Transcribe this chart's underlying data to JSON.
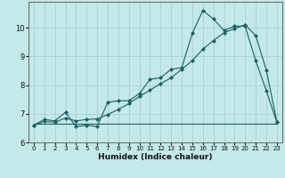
{
  "title": "",
  "xlabel": "Humidex (Indice chaleur)",
  "ylabel": "",
  "bg_color": "#c5e8e8",
  "grid_color": "#a8d0d0",
  "line_color": "#1a6060",
  "xlim": [
    -0.5,
    23.5
  ],
  "ylim": [
    6,
    10.9
  ],
  "xticks": [
    0,
    1,
    2,
    3,
    4,
    5,
    6,
    7,
    8,
    9,
    10,
    11,
    12,
    13,
    14,
    15,
    16,
    17,
    18,
    19,
    20,
    21,
    22,
    23
  ],
  "yticks": [
    6,
    7,
    8,
    9,
    10
  ],
  "line1_x": [
    0,
    1,
    2,
    3,
    4,
    5,
    6,
    7,
    8,
    9,
    10,
    11,
    12,
    13,
    14,
    15,
    16,
    17,
    18,
    19,
    20,
    21,
    22,
    23
  ],
  "line1_y": [
    6.6,
    6.8,
    6.75,
    7.05,
    6.55,
    6.6,
    6.55,
    7.4,
    7.45,
    7.45,
    7.7,
    8.2,
    8.25,
    8.55,
    8.6,
    9.8,
    10.6,
    10.3,
    9.9,
    10.05,
    10.05,
    8.85,
    7.8,
    6.7
  ],
  "line2_x": [
    0,
    1,
    2,
    3,
    4,
    5,
    6,
    7,
    8,
    9,
    10,
    11,
    12,
    13,
    14,
    15,
    16,
    17,
    18,
    19,
    20,
    21,
    22,
    23
  ],
  "line2_y": [
    6.6,
    6.73,
    6.7,
    6.85,
    6.75,
    6.8,
    6.82,
    6.97,
    7.15,
    7.35,
    7.6,
    7.82,
    8.05,
    8.25,
    8.55,
    8.85,
    9.25,
    9.55,
    9.82,
    9.97,
    10.1,
    9.72,
    8.52,
    6.72
  ],
  "line3_x": [
    0,
    1,
    2,
    3,
    4,
    5,
    6,
    7,
    8,
    9,
    10,
    11,
    12,
    13,
    14,
    15,
    16,
    17,
    18,
    19,
    20,
    21,
    22,
    23
  ],
  "line3_y": [
    6.65,
    6.65,
    6.65,
    6.65,
    6.65,
    6.65,
    6.65,
    6.65,
    6.65,
    6.65,
    6.65,
    6.65,
    6.65,
    6.65,
    6.65,
    6.65,
    6.65,
    6.65,
    6.65,
    6.65,
    6.65,
    6.65,
    6.65,
    6.65
  ]
}
